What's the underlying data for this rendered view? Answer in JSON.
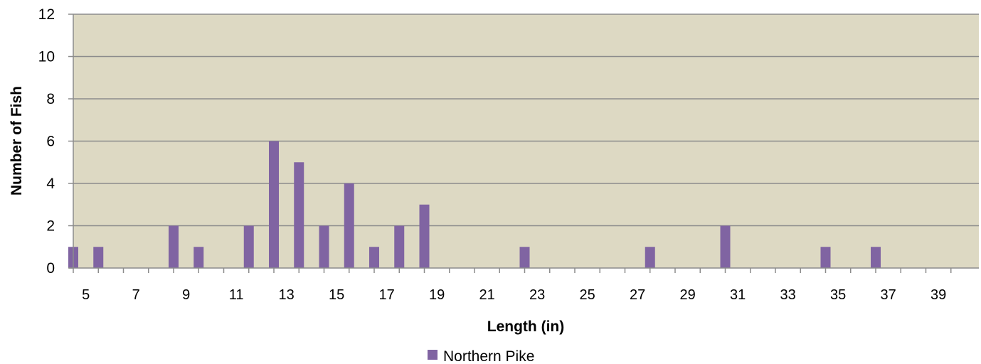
{
  "chart_data": {
    "type": "bar",
    "title": "",
    "xlabel": "Length (in)",
    "ylabel": "Number of Fish",
    "ylim": [
      0,
      12
    ],
    "y_ticks": [
      0,
      2,
      4,
      6,
      8,
      10,
      12
    ],
    "x_range": [
      5,
      40
    ],
    "x_tick_labels": [
      "5",
      "7",
      "9",
      "11",
      "13",
      "15",
      "17",
      "19",
      "21",
      "23",
      "25",
      "27",
      "29",
      "31",
      "33",
      "35",
      "37",
      "39"
    ],
    "grid": true,
    "legend_position": "bottom",
    "plot_background": "#ddd9c3",
    "series": [
      {
        "name": "Northern Pike",
        "color": "#8064a2",
        "x": [
          5,
          6,
          9,
          10,
          12,
          13,
          14,
          15,
          16,
          17,
          18,
          19,
          23,
          28,
          31,
          35,
          37
        ],
        "values": [
          1,
          1,
          2,
          1,
          2,
          6,
          5,
          2,
          4,
          1,
          2,
          3,
          1,
          1,
          2,
          1,
          1
        ]
      }
    ]
  }
}
